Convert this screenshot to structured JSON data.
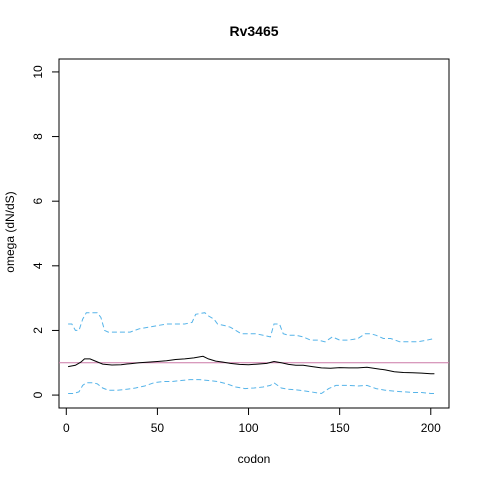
{
  "chart_data": {
    "type": "line",
    "title": "Rv3465",
    "xlabel": "codon",
    "ylabel": "omega (dN/dS)",
    "xlim": [
      -4,
      210
    ],
    "ylim": [
      -0.4,
      10.4
    ],
    "x_ticks": [
      0,
      50,
      100,
      150,
      200
    ],
    "y_ticks": [
      0,
      2,
      4,
      6,
      8,
      10
    ],
    "grid": false,
    "legend": "none",
    "reference_line": {
      "y": 1,
      "color": "#cc79a7"
    },
    "series": [
      {
        "role": "estimate",
        "color": "#000000",
        "style": "solid",
        "x": [
          1,
          5,
          8,
          10,
          13,
          16,
          20,
          25,
          30,
          35,
          40,
          45,
          50,
          55,
          60,
          65,
          70,
          75,
          78,
          82,
          86,
          90,
          95,
          100,
          105,
          110,
          114,
          118,
          122,
          126,
          130,
          135,
          140,
          145,
          150,
          155,
          160,
          165,
          170,
          175,
          180,
          185,
          190,
          195,
          200,
          202
        ],
        "y": [
          0.88,
          0.92,
          1.02,
          1.12,
          1.12,
          1.05,
          0.96,
          0.93,
          0.94,
          0.97,
          1.0,
          1.02,
          1.04,
          1.06,
          1.1,
          1.12,
          1.15,
          1.2,
          1.12,
          1.05,
          1.02,
          0.98,
          0.95,
          0.94,
          0.96,
          0.98,
          1.04,
          1.0,
          0.95,
          0.92,
          0.92,
          0.88,
          0.84,
          0.83,
          0.85,
          0.84,
          0.84,
          0.86,
          0.82,
          0.78,
          0.72,
          0.7,
          0.69,
          0.68,
          0.66,
          0.66
        ]
      },
      {
        "role": "upper",
        "color": "#56b4e9",
        "style": "dashed",
        "x": [
          1,
          3,
          5,
          7,
          9,
          11,
          14,
          17,
          19,
          21,
          23,
          26,
          30,
          35,
          40,
          45,
          50,
          55,
          60,
          65,
          69,
          71,
          76,
          78,
          81,
          83,
          87,
          90,
          93,
          96,
          100,
          104,
          108,
          112,
          114,
          117,
          119,
          122,
          126,
          130,
          134,
          138,
          142,
          146,
          150,
          155,
          160,
          164,
          167,
          170,
          174,
          178,
          183,
          188,
          193,
          198,
          202
        ],
        "y": [
          2.2,
          2.2,
          2.0,
          2.0,
          2.35,
          2.55,
          2.55,
          2.55,
          2.4,
          2.0,
          1.95,
          1.95,
          1.95,
          1.95,
          2.05,
          2.1,
          2.15,
          2.2,
          2.2,
          2.2,
          2.25,
          2.5,
          2.55,
          2.45,
          2.35,
          2.2,
          2.15,
          2.1,
          2.0,
          1.9,
          1.9,
          1.9,
          1.85,
          1.8,
          2.2,
          2.2,
          1.9,
          1.85,
          1.85,
          1.8,
          1.7,
          1.7,
          1.65,
          1.8,
          1.7,
          1.7,
          1.75,
          1.9,
          1.9,
          1.85,
          1.75,
          1.75,
          1.65,
          1.65,
          1.65,
          1.7,
          1.75
        ]
      },
      {
        "role": "lower",
        "color": "#56b4e9",
        "style": "dashed",
        "x": [
          1,
          4,
          7,
          9,
          11,
          14,
          17,
          20,
          23,
          28,
          33,
          38,
          43,
          48,
          53,
          58,
          63,
          68,
          73,
          78,
          83,
          88,
          93,
          98,
          103,
          108,
          112,
          114,
          118,
          122,
          128,
          134,
          140,
          144,
          148,
          155,
          160,
          165,
          170,
          175,
          180,
          185,
          190,
          195,
          200,
          202
        ],
        "y": [
          0.05,
          0.05,
          0.1,
          0.3,
          0.38,
          0.38,
          0.35,
          0.22,
          0.15,
          0.15,
          0.18,
          0.22,
          0.28,
          0.38,
          0.42,
          0.42,
          0.45,
          0.48,
          0.48,
          0.45,
          0.42,
          0.35,
          0.25,
          0.2,
          0.22,
          0.25,
          0.3,
          0.38,
          0.22,
          0.18,
          0.15,
          0.1,
          0.05,
          0.2,
          0.3,
          0.3,
          0.28,
          0.3,
          0.2,
          0.15,
          0.12,
          0.1,
          0.08,
          0.08,
          0.05,
          0.05
        ]
      }
    ]
  }
}
